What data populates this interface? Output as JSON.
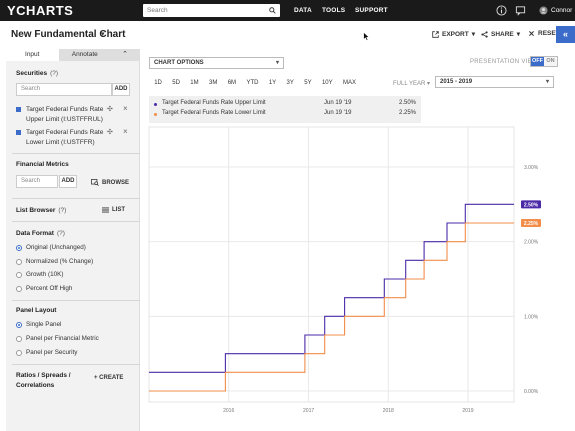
{
  "nav": {
    "logo": "YCHARTS",
    "search_placeholder": "Search",
    "links": [
      "DATA",
      "TOOLS",
      "SUPPORT"
    ],
    "user": "Connor"
  },
  "header": {
    "title": "New Fundamental Chart",
    "export": "EXPORT",
    "share": "SHARE",
    "reset": "RESET"
  },
  "sidebar": {
    "tabs": [
      "Input",
      "Annotate"
    ],
    "securities": {
      "title": "Securities",
      "help": "(?)",
      "search_placeholder": "Search",
      "add": "ADD",
      "items": [
        {
          "name": "Target Federal Funds Rate Upper Limit (I:USTFFRUL)"
        },
        {
          "name": "Target Federal Funds Rate Lower Limit (I:USTFFR)"
        }
      ]
    },
    "metrics": {
      "title": "Financial Metrics",
      "search_placeholder": "Search",
      "add": "ADD",
      "browse": "BROWSE"
    },
    "list_browser": {
      "title": "List Browser",
      "help": "(?)",
      "list": "LIST"
    },
    "data_format": {
      "title": "Data Format",
      "help": "(?)",
      "options": [
        "Original (Unchanged)",
        "Normalized (% Change)",
        "Growth (10K)",
        "Percent Off High"
      ],
      "selected": 0
    },
    "panel_layout": {
      "title": "Panel Layout",
      "options": [
        "Single Panel",
        "Panel per Financial Metric",
        "Panel per Security"
      ],
      "selected": 0
    },
    "ratios": {
      "title_line1": "Ratios / Spreads /",
      "title_line2": "Correlations",
      "create": "+ CREATE"
    }
  },
  "chart_controls": {
    "options_label": "CHART OPTIONS",
    "presentation_label": "PRESENTATION VIEW",
    "toggle_off": "OFF",
    "toggle_on": "ON",
    "ranges": [
      "1D",
      "5D",
      "1M",
      "3M",
      "6M",
      "YTD",
      "1Y",
      "3Y",
      "5Y",
      "10Y",
      "MAX"
    ],
    "full_year": "FULL YEAR",
    "range_value": "2015 - 2019"
  },
  "legend": [
    {
      "name": "Target Federal Funds Rate Upper Limit",
      "date": "Jun 19 '19",
      "value": "2.50%",
      "color": "#4b2aa8"
    },
    {
      "name": "Target Federal Funds Rate Lower Limit",
      "date": "Jun 19 '19",
      "value": "2.25%",
      "color": "#f28d4a"
    }
  ],
  "chart_data": {
    "type": "line",
    "x_ticks": [
      "2016",
      "2017",
      "2018",
      "2019"
    ],
    "y_ticks": [
      "0.00%",
      "1.00%",
      "2.00%",
      "3.00%"
    ],
    "ylim": [
      0,
      3
    ],
    "xlim": [
      "2015-01-01",
      "2019-07-31"
    ],
    "grid": true,
    "series": [
      {
        "name": "Target Federal Funds Rate Upper Limit",
        "color": "#4b2aa8",
        "end_label": "2.50%",
        "points": [
          [
            "2015-01-01",
            0.25
          ],
          [
            "2015-12-17",
            0.25
          ],
          [
            "2015-12-17",
            0.5
          ],
          [
            "2016-12-15",
            0.5
          ],
          [
            "2016-12-15",
            0.75
          ],
          [
            "2017-03-16",
            0.75
          ],
          [
            "2017-03-16",
            1.0
          ],
          [
            "2017-06-15",
            1.0
          ],
          [
            "2017-06-15",
            1.25
          ],
          [
            "2017-12-14",
            1.25
          ],
          [
            "2017-12-14",
            1.5
          ],
          [
            "2018-03-22",
            1.5
          ],
          [
            "2018-03-22",
            1.75
          ],
          [
            "2018-06-14",
            1.75
          ],
          [
            "2018-06-14",
            2.0
          ],
          [
            "2018-09-27",
            2.0
          ],
          [
            "2018-09-27",
            2.25
          ],
          [
            "2018-12-20",
            2.25
          ],
          [
            "2018-12-20",
            2.5
          ],
          [
            "2019-07-31",
            2.5
          ]
        ]
      },
      {
        "name": "Target Federal Funds Rate Lower Limit",
        "color": "#f28d4a",
        "end_label": "2.25%",
        "points": [
          [
            "2015-01-01",
            0.0
          ],
          [
            "2015-12-17",
            0.0
          ],
          [
            "2015-12-17",
            0.25
          ],
          [
            "2016-12-15",
            0.25
          ],
          [
            "2016-12-15",
            0.5
          ],
          [
            "2017-03-16",
            0.5
          ],
          [
            "2017-03-16",
            0.75
          ],
          [
            "2017-06-15",
            0.75
          ],
          [
            "2017-06-15",
            1.0
          ],
          [
            "2017-12-14",
            1.0
          ],
          [
            "2017-12-14",
            1.25
          ],
          [
            "2018-03-22",
            1.25
          ],
          [
            "2018-03-22",
            1.5
          ],
          [
            "2018-06-14",
            1.5
          ],
          [
            "2018-06-14",
            1.75
          ],
          [
            "2018-09-27",
            1.75
          ],
          [
            "2018-09-27",
            2.0
          ],
          [
            "2018-12-20",
            2.0
          ],
          [
            "2018-12-20",
            2.25
          ],
          [
            "2019-07-31",
            2.25
          ]
        ]
      }
    ]
  }
}
